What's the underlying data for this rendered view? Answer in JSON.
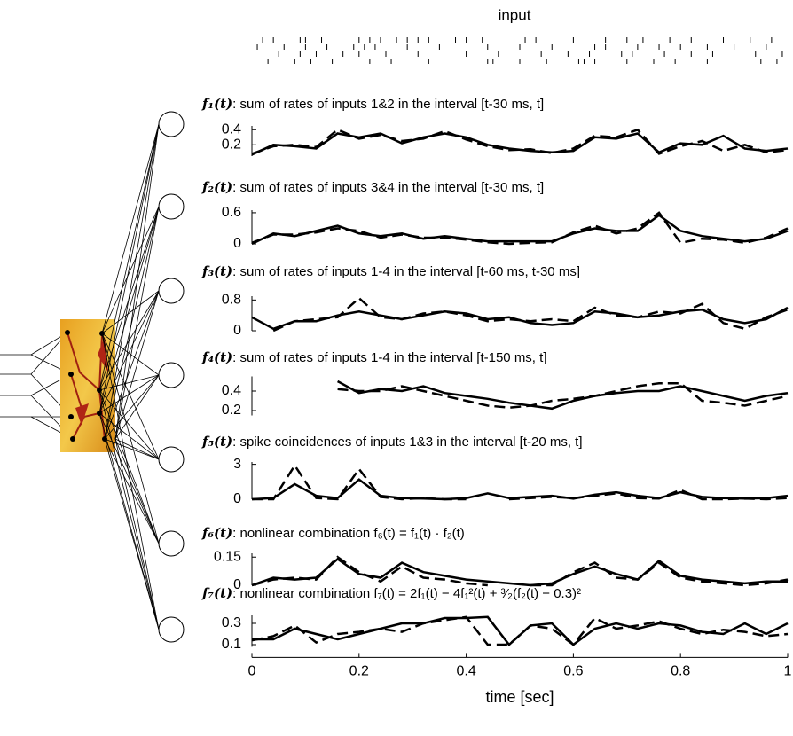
{
  "chart_data": [
    {
      "type": "raster",
      "title": "input",
      "xlim": [
        0,
        1
      ],
      "series": [
        {
          "color": "#000",
          "values": [
            0.02,
            0.04,
            0.09,
            0.1,
            0.13,
            0.2,
            0.22,
            0.24,
            0.27,
            0.29,
            0.31,
            0.33,
            0.38,
            0.4,
            0.43,
            0.51,
            0.53,
            0.6,
            0.66,
            0.7,
            0.73,
            0.78,
            0.82,
            0.88,
            0.93,
            0.97
          ]
        },
        {
          "color": "#000",
          "values": [
            0.01,
            0.06,
            0.1,
            0.14,
            0.19,
            0.21,
            0.23,
            0.29,
            0.35,
            0.44,
            0.5,
            0.56,
            0.64,
            0.66,
            0.72,
            0.76,
            0.8,
            0.85,
            0.9,
            0.96
          ]
        },
        {
          "color": "#000",
          "values": [
            0.05,
            0.09,
            0.12,
            0.17,
            0.2,
            0.25,
            0.31,
            0.4,
            0.46,
            0.54,
            0.59,
            0.63,
            0.69,
            0.71,
            0.77,
            0.82,
            0.86,
            0.94,
            0.99
          ]
        },
        {
          "color": "#000",
          "values": [
            0.03,
            0.08,
            0.11,
            0.15,
            0.22,
            0.26,
            0.33,
            0.44,
            0.45,
            0.5,
            0.55,
            0.61,
            0.62,
            0.64,
            0.7,
            0.75,
            0.79,
            0.85,
            0.95,
            0.98
          ]
        }
      ]
    },
    {
      "type": "line",
      "label": "f₁(t)",
      "title": ": sum of rates of inputs 1&2 in the interval [t-30 ms, t]",
      "x": [
        0,
        0.04,
        0.08,
        0.12,
        0.16,
        0.2,
        0.24,
        0.28,
        0.32,
        0.36,
        0.4,
        0.44,
        0.48,
        0.52,
        0.56,
        0.6,
        0.64,
        0.68,
        0.72,
        0.76,
        0.8,
        0.84,
        0.88,
        0.92,
        0.96,
        1
      ],
      "xlim": [
        0,
        1
      ],
      "ylim": [
        0.05,
        0.45
      ],
      "yticks": [
        0.2,
        0.4
      ],
      "series": [
        {
          "color": "#000",
          "style": "solid",
          "values": [
            0.07,
            0.2,
            0.18,
            0.15,
            0.35,
            0.3,
            0.35,
            0.22,
            0.3,
            0.35,
            0.3,
            0.2,
            0.15,
            0.12,
            0.1,
            0.12,
            0.3,
            0.28,
            0.35,
            0.1,
            0.22,
            0.2,
            0.32,
            0.15,
            0.12,
            0.15
          ]
        },
        {
          "color": "#000",
          "style": "dashed",
          "values": [
            0.08,
            0.18,
            0.2,
            0.17,
            0.4,
            0.28,
            0.33,
            0.25,
            0.28,
            0.38,
            0.27,
            0.18,
            0.13,
            0.14,
            0.09,
            0.15,
            0.32,
            0.3,
            0.4,
            0.08,
            0.18,
            0.25,
            0.12,
            0.2,
            0.1,
            0.13
          ]
        }
      ]
    },
    {
      "type": "line",
      "label": "f₂(t)",
      "title": ": sum of rates of inputs 3&4 in the interval [t-30 ms, t]",
      "x": [
        0,
        0.04,
        0.08,
        0.12,
        0.16,
        0.2,
        0.24,
        0.28,
        0.32,
        0.36,
        0.4,
        0.44,
        0.48,
        0.52,
        0.56,
        0.6,
        0.64,
        0.68,
        0.72,
        0.76,
        0.8,
        0.84,
        0.88,
        0.92,
        0.96,
        1
      ],
      "xlim": [
        0,
        1
      ],
      "ylim": [
        0,
        0.65
      ],
      "yticks": [
        0,
        0.6
      ],
      "series": [
        {
          "color": "#000",
          "style": "solid",
          "values": [
            0,
            0.2,
            0.15,
            0.25,
            0.35,
            0.2,
            0.15,
            0.2,
            0.1,
            0.15,
            0.1,
            0.05,
            0.05,
            0.05,
            0.05,
            0.2,
            0.3,
            0.25,
            0.25,
            0.55,
            0.25,
            0.15,
            0.1,
            0.05,
            0.1,
            0.25
          ]
        },
        {
          "color": "#000",
          "style": "dashed",
          "values": [
            0.02,
            0.18,
            0.18,
            0.22,
            0.3,
            0.25,
            0.12,
            0.18,
            0.12,
            0.12,
            0.08,
            0.03,
            0,
            0.02,
            0.03,
            0.22,
            0.35,
            0.2,
            0.3,
            0.6,
            0.02,
            0.1,
            0.08,
            0.02,
            0.12,
            0.3
          ]
        }
      ]
    },
    {
      "type": "line",
      "label": "f₃(t)",
      "title": ": sum of rates of inputs 1-4 in the interval [t-60 ms, t-30 ms]",
      "x": [
        0,
        0.04,
        0.08,
        0.12,
        0.16,
        0.2,
        0.24,
        0.28,
        0.32,
        0.36,
        0.4,
        0.44,
        0.48,
        0.52,
        0.56,
        0.6,
        0.64,
        0.68,
        0.72,
        0.76,
        0.8,
        0.84,
        0.88,
        0.92,
        0.96,
        1
      ],
      "xlim": [
        0,
        1
      ],
      "ylim": [
        0,
        0.9
      ],
      "yticks": [
        0,
        0.8
      ],
      "series": [
        {
          "color": "#000",
          "style": "solid",
          "values": [
            0.35,
            0.05,
            0.25,
            0.25,
            0.4,
            0.5,
            0.4,
            0.3,
            0.4,
            0.5,
            0.45,
            0.3,
            0.35,
            0.2,
            0.15,
            0.2,
            0.5,
            0.45,
            0.35,
            0.4,
            0.5,
            0.55,
            0.3,
            0.2,
            0.3,
            0.6
          ]
        },
        {
          "color": "#000",
          "style": "dashed",
          "values": [
            null,
            0,
            0.25,
            0.3,
            0.35,
            0.85,
            0.35,
            0.3,
            0.45,
            0.5,
            0.4,
            0.25,
            0.3,
            0.25,
            0.3,
            0.25,
            0.6,
            0.4,
            0.35,
            0.5,
            0.45,
            0.7,
            0.2,
            0.05,
            0.35,
            0.55
          ]
        }
      ]
    },
    {
      "type": "line",
      "label": "f₄(t)",
      "title": ": sum of rates of inputs 1-4 in the interval [t-150 ms, t]",
      "x": [
        0,
        0.04,
        0.08,
        0.12,
        0.16,
        0.2,
        0.24,
        0.28,
        0.32,
        0.36,
        0.4,
        0.44,
        0.48,
        0.52,
        0.56,
        0.6,
        0.64,
        0.68,
        0.72,
        0.76,
        0.8,
        0.84,
        0.88,
        0.92,
        0.96,
        1
      ],
      "xlim": [
        0,
        1
      ],
      "ylim": [
        0.15,
        0.55
      ],
      "yticks": [
        0.2,
        0.4
      ],
      "series": [
        {
          "color": "#000",
          "style": "solid",
          "values": [
            0.45,
            null,
            null,
            null,
            0.5,
            0.38,
            0.42,
            0.4,
            0.45,
            0.38,
            0.35,
            0.32,
            0.28,
            0.25,
            0.22,
            0.3,
            0.35,
            0.38,
            0.4,
            0.4,
            0.45,
            0.4,
            0.35,
            0.3,
            0.35,
            0.38
          ]
        },
        {
          "color": "#000",
          "style": "dashed",
          "values": [
            0.5,
            null,
            null,
            null,
            0.42,
            0.4,
            0.4,
            0.45,
            0.4,
            0.35,
            0.3,
            0.25,
            0.23,
            0.25,
            0.3,
            0.32,
            0.35,
            0.4,
            0.45,
            0.48,
            0.48,
            0.3,
            0.28,
            0.25,
            0.3,
            0.35
          ]
        }
      ]
    },
    {
      "type": "line",
      "label": "f₅(t)",
      "title": ": spike coincidences of inputs 1&3 in the interval [t-20 ms, t]",
      "x": [
        0,
        0.04,
        0.08,
        0.12,
        0.16,
        0.2,
        0.24,
        0.28,
        0.32,
        0.36,
        0.4,
        0.44,
        0.48,
        0.52,
        0.56,
        0.6,
        0.64,
        0.68,
        0.72,
        0.76,
        0.8,
        0.84,
        0.88,
        0.92,
        0.96,
        1
      ],
      "xlim": [
        0,
        1
      ],
      "ylim": [
        0,
        3.2
      ],
      "yticks": [
        0,
        3
      ],
      "series": [
        {
          "color": "#000",
          "style": "solid",
          "values": [
            0,
            0.1,
            1.3,
            0.3,
            0.1,
            1.7,
            0.3,
            0.1,
            0.05,
            0,
            0.1,
            0.5,
            0.1,
            0.2,
            0.3,
            0.05,
            0.4,
            0.6,
            0.3,
            0.1,
            0.6,
            0.2,
            0.1,
            0.05,
            0.1,
            0.3
          ]
        },
        {
          "color": "#000",
          "style": "dashed",
          "values": [
            0,
            0,
            2.9,
            0.1,
            0,
            2.6,
            0.2,
            0,
            0.1,
            0,
            0,
            null,
            0,
            0.1,
            0.2,
            0.1,
            0.3,
            0.5,
            0.1,
            0.05,
            0.8,
            0,
            0,
            0.05,
            0,
            0.1
          ]
        }
      ]
    },
    {
      "type": "line",
      "label": "f₆(t)",
      "title": ": nonlinear combination f₆(t) = f₁(t) · f₂(t)",
      "x": [
        0,
        0.04,
        0.08,
        0.12,
        0.16,
        0.2,
        0.24,
        0.28,
        0.32,
        0.36,
        0.4,
        0.44,
        0.48,
        0.52,
        0.56,
        0.6,
        0.64,
        0.68,
        0.72,
        0.76,
        0.8,
        0.84,
        0.88,
        0.92,
        0.96,
        1
      ],
      "xlim": [
        0,
        1
      ],
      "ylim": [
        0,
        0.17
      ],
      "yticks": [
        0,
        0.15
      ],
      "series": [
        {
          "color": "#000",
          "style": "solid",
          "values": [
            0,
            0.04,
            0.03,
            0.04,
            0.14,
            0.06,
            0.04,
            0.12,
            0.07,
            0.05,
            0.03,
            0.02,
            0.01,
            0,
            0.01,
            0.06,
            0.1,
            0.06,
            0.03,
            0.13,
            0.05,
            0.03,
            0.02,
            0.01,
            0.02,
            0.02
          ]
        },
        {
          "color": "#000",
          "style": "dashed",
          "values": [
            0,
            0.03,
            0.04,
            0.03,
            0.15,
            0.07,
            0.02,
            0.1,
            0.04,
            0.03,
            0.01,
            0,
            null,
            0,
            0,
            0.07,
            0.12,
            0.04,
            0.03,
            0.12,
            0.04,
            0.02,
            0.01,
            0,
            0.01,
            0.03
          ]
        }
      ]
    },
    {
      "type": "line",
      "label": "f₇(t)",
      "title": ": nonlinear combination f₇(t) = 2f₁(t) − 4f₁²(t) + ³⁄₂(f₂(t) − 0.3)²",
      "x": [
        0,
        0.04,
        0.08,
        0.12,
        0.16,
        0.2,
        0.24,
        0.28,
        0.32,
        0.36,
        0.4,
        0.44,
        0.48,
        0.52,
        0.56,
        0.6,
        0.64,
        0.68,
        0.72,
        0.76,
        0.8,
        0.84,
        0.88,
        0.92,
        0.96,
        1
      ],
      "xlim": [
        0,
        1
      ],
      "ylim": [
        0.08,
        0.38
      ],
      "yticks": [
        0.1,
        0.3
      ],
      "xticks": [
        0,
        0.2,
        0.4,
        0.6,
        0.8,
        1
      ],
      "xlabel": "time [sec]",
      "series": [
        {
          "color": "#000",
          "style": "solid",
          "values": [
            0.15,
            0.15,
            0.25,
            0.2,
            0.15,
            0.2,
            0.25,
            0.3,
            0.3,
            0.35,
            0.35,
            0.36,
            0.1,
            0.28,
            0.3,
            0.1,
            0.25,
            0.3,
            0.25,
            0.3,
            0.28,
            0.22,
            0.2,
            0.3,
            0.2,
            0.3
          ]
        },
        {
          "color": "#000",
          "style": "dashed",
          "values": [
            0.14,
            0.18,
            0.28,
            0.12,
            0.2,
            0.22,
            0.25,
            0.22,
            0.3,
            0.33,
            0.36,
            0.1,
            0.1,
            0.28,
            0.25,
            0.1,
            0.35,
            0.25,
            0.28,
            0.32,
            0.25,
            0.2,
            0.24,
            0.22,
            0.18,
            0.2
          ]
        }
      ]
    }
  ]
}
